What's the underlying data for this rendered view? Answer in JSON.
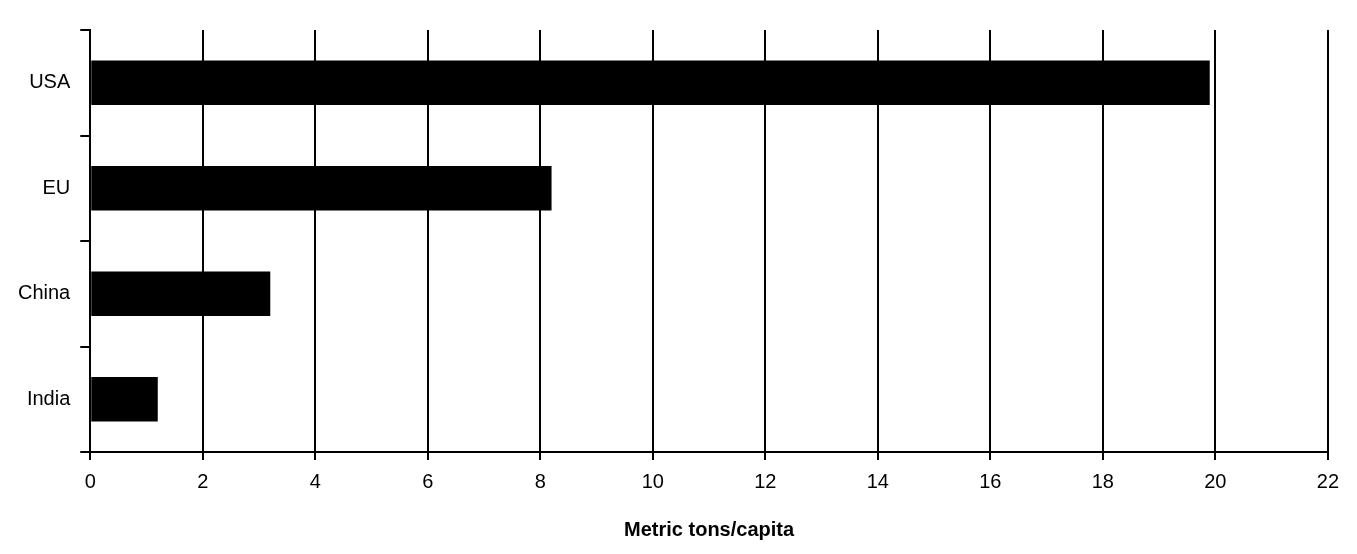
{
  "chart_data": {
    "type": "bar",
    "orientation": "horizontal",
    "xlabel": "Metric tons/capita",
    "categories": [
      "USA",
      "EU",
      "China",
      "India"
    ],
    "values": [
      19.9,
      8.2,
      3.2,
      1.2
    ],
    "color": "#000000",
    "xlim": [
      0,
      22
    ],
    "xticks": [
      0,
      2,
      4,
      6,
      8,
      10,
      12,
      14,
      16,
      18,
      20,
      22
    ],
    "grid": "x",
    "legend": false
  }
}
